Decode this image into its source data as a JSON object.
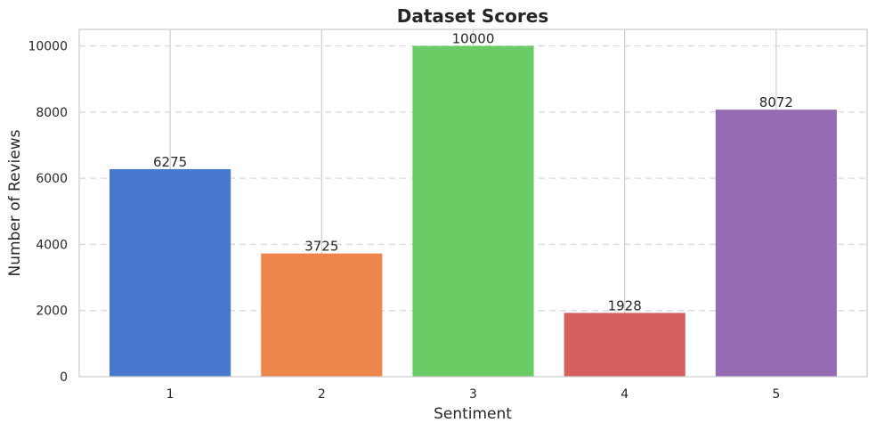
{
  "chart_data": {
    "type": "bar",
    "title": "Dataset Scores",
    "xlabel": "Sentiment",
    "ylabel": "Number of Reviews",
    "categories": [
      "1",
      "2",
      "3",
      "4",
      "5"
    ],
    "values": [
      6275,
      3725,
      10000,
      1928,
      8072
    ],
    "bar_labels": [
      "6275",
      "3725",
      "10000",
      "1928",
      "8072"
    ],
    "colors": [
      "#4878cf",
      "#ee854a",
      "#6acc64",
      "#d65f5f",
      "#956cb4"
    ],
    "y_ticks": [
      0,
      2000,
      4000,
      6000,
      8000,
      10000
    ],
    "y_tick_labels": [
      "0",
      "2000",
      "4000",
      "6000",
      "8000",
      "10000"
    ],
    "ylim": [
      0,
      10500
    ],
    "grid": true
  }
}
